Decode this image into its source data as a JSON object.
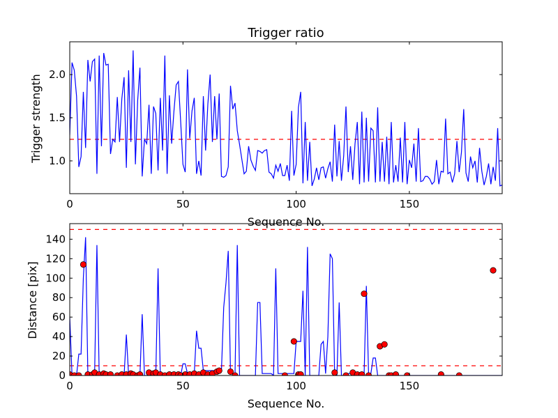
{
  "chart_data": [
    {
      "type": "line",
      "title": "Trigger ratio",
      "xlabel": "Sequence No.",
      "ylabel": "Trigger strength",
      "xlim": [
        0,
        191
      ],
      "ylim": [
        0.62,
        2.38
      ],
      "xticks": [
        0,
        50,
        100,
        150
      ],
      "yticks": [
        1.0,
        1.5,
        2.0
      ],
      "ytick_labels": [
        "1.0",
        "1.5",
        "2.0"
      ],
      "line_color": "#0000ff",
      "threshold": 1.25,
      "threshold_color": "#ff0000",
      "series": [
        {
          "values": [
            1.3,
            2.14,
            2.05,
            1.75,
            0.93,
            1.05,
            1.8,
            1.15,
            2.17,
            1.92,
            2.15,
            2.18,
            0.85,
            2.22,
            1.17,
            2.25,
            2.11,
            2.12,
            1.08,
            1.25,
            1.22,
            1.74,
            1.22,
            1.72,
            1.97,
            0.92,
            2.05,
            1.22,
            2.28,
            0.96,
            1.7,
            2.08,
            0.82,
            1.25,
            1.2,
            1.65,
            0.85,
            1.63,
            1.55,
            0.89,
            1.73,
            1.12,
            2.22,
            0.85,
            1.76,
            1.2,
            1.57,
            1.88,
            1.92,
            1.45,
            0.96,
            0.87,
            2.06,
            1.26,
            1.58,
            1.73,
            0.85,
            1.0,
            0.83,
            1.75,
            1.12,
            1.66,
            2.0,
            1.22,
            1.75,
            1.25,
            1.78,
            0.82,
            0.81,
            0.83,
            0.93,
            1.87,
            1.6,
            1.67,
            1.35,
            1.19,
            1.02,
            0.85,
            0.88,
            1.17,
            1.01,
            0.94,
            0.89,
            1.12,
            1.11,
            1.09,
            1.12,
            1.13,
            0.87,
            0.85,
            0.8,
            0.95,
            0.88,
            0.97,
            0.83,
            0.83,
            0.95,
            0.77,
            1.58,
            0.83,
            0.96,
            1.62,
            1.8,
            0.74,
            1.45,
            0.77,
            1.22,
            0.71,
            0.79,
            0.92,
            0.78,
            0.92,
            0.93,
            0.8,
            0.91,
            0.99,
            0.76,
            1.42,
            0.82,
            1.23,
            0.77,
            1.06,
            1.63,
            0.87,
            1.17,
            0.78,
            1.2,
            1.45,
            0.73,
            1.57,
            0.75,
            1.5,
            0.76,
            1.38,
            1.35,
            0.75,
            1.62,
            0.76,
            1.22,
            0.76,
            1.28,
            0.73,
            1.45,
            0.75,
            0.95,
            0.76,
            1.27,
            0.75,
            1.45,
            0.73,
            1.01,
            0.92,
            1.2,
            0.76,
            1.38,
            0.76,
            0.77,
            0.82,
            0.82,
            0.79,
            0.73,
            0.76,
            1.01,
            0.73,
            0.88,
            0.87,
            1.49,
            0.85,
            0.87,
            0.75,
            0.85,
            1.23,
            0.87,
            1.1,
            1.6,
            0.86,
            0.76,
            1.05,
            0.92,
            1.0,
            0.75,
            1.15,
            0.88,
            0.72,
            0.82,
            0.97,
            0.73,
            0.93,
            0.77,
            1.38,
            0.71,
            0.72,
            0.72,
            0.71
          ]
        }
      ]
    },
    {
      "type": "line",
      "title": "",
      "xlabel": "Sequence No.",
      "ylabel": "Distance [pix]",
      "xlim": [
        0,
        191
      ],
      "ylim": [
        0,
        156
      ],
      "xticks": [
        0,
        50,
        100,
        150
      ],
      "yticks": [
        0,
        20,
        40,
        60,
        80,
        100,
        120,
        140
      ],
      "line_color": "#0000ff",
      "marker_color": "#ff0000",
      "thresholds": [
        10,
        150
      ],
      "threshold_color": "#ff0000",
      "series": [
        {
          "values": [
            60,
            0,
            0,
            0,
            22,
            22,
            100,
            142,
            0,
            0,
            0,
            4,
            134,
            0,
            0,
            0,
            0,
            0,
            0,
            0,
            0,
            0,
            0,
            0,
            0,
            42,
            0,
            0,
            0,
            0,
            0,
            0,
            63,
            0,
            0,
            0,
            0,
            0,
            0,
            110,
            0,
            0,
            0,
            0,
            0,
            0,
            0,
            0,
            0,
            0,
            12,
            12,
            2,
            2,
            2,
            2,
            46,
            28,
            28,
            5,
            5,
            5,
            5,
            5,
            5,
            5,
            5,
            5,
            70,
            95,
            128,
            2,
            2,
            2,
            134,
            0,
            0,
            0,
            0,
            0,
            0,
            0,
            0,
            75,
            75,
            2,
            2,
            2,
            2,
            2,
            0,
            110,
            2,
            2,
            2,
            2,
            2,
            2,
            2,
            2,
            35,
            35,
            35,
            87,
            0,
            132,
            0,
            0,
            0,
            0,
            0,
            32,
            35,
            2,
            40,
            125,
            120,
            0,
            0,
            75,
            0,
            0,
            2,
            2,
            2,
            0,
            0,
            0,
            2,
            2,
            0,
            92,
            0,
            2,
            18,
            18,
            0,
            0,
            0,
            0,
            0,
            0,
            0,
            0,
            0,
            0,
            0,
            0,
            0,
            0,
            0,
            0,
            0,
            0,
            0,
            0,
            0,
            0,
            0,
            0,
            0,
            0,
            0,
            0,
            0,
            0,
            0,
            0,
            0,
            0,
            0,
            0,
            0,
            0,
            0,
            0,
            0,
            0,
            0,
            0,
            0,
            0,
            0,
            0,
            0,
            0,
            0,
            0,
            0,
            0,
            0,
            0,
            0,
            0,
            0,
            0
          ]
        },
        {
          "name": "",
          "markers": [
            [
              0,
              1
            ],
            [
              2,
              0
            ],
            [
              4,
              0
            ],
            [
              6,
              114
            ],
            [
              8,
              1
            ],
            [
              10,
              1
            ],
            [
              11,
              3
            ],
            [
              13,
              1
            ],
            [
              15,
              2
            ],
            [
              16,
              1
            ],
            [
              18,
              1
            ],
            [
              21,
              0
            ],
            [
              23,
              1
            ],
            [
              25,
              1
            ],
            [
              27,
              2
            ],
            [
              28,
              1
            ],
            [
              30,
              0
            ],
            [
              31,
              1
            ],
            [
              35,
              3
            ],
            [
              37,
              2
            ],
            [
              38,
              3
            ],
            [
              40,
              1
            ],
            [
              42,
              0
            ],
            [
              44,
              1
            ],
            [
              46,
              1
            ],
            [
              48,
              1
            ],
            [
              49,
              0
            ],
            [
              51,
              1
            ],
            [
              53,
              1
            ],
            [
              55,
              2
            ],
            [
              57,
              1
            ],
            [
              59,
              3
            ],
            [
              61,
              1
            ],
            [
              63,
              2
            ],
            [
              65,
              4
            ],
            [
              66,
              5
            ],
            [
              71,
              4
            ],
            [
              73,
              0
            ],
            [
              95,
              0
            ],
            [
              99,
              35
            ],
            [
              101,
              1
            ],
            [
              102,
              1
            ],
            [
              117,
              3
            ],
            [
              122,
              0
            ],
            [
              125,
              3
            ],
            [
              127,
              1
            ],
            [
              129,
              1
            ],
            [
              130,
              84
            ],
            [
              132,
              0
            ],
            [
              137,
              30
            ],
            [
              139,
              32
            ],
            [
              141,
              0
            ],
            [
              142,
              0
            ],
            [
              144,
              1
            ],
            [
              149,
              0
            ],
            [
              164,
              1
            ],
            [
              172,
              0
            ],
            [
              187,
              108
            ]
          ]
        }
      ]
    }
  ]
}
